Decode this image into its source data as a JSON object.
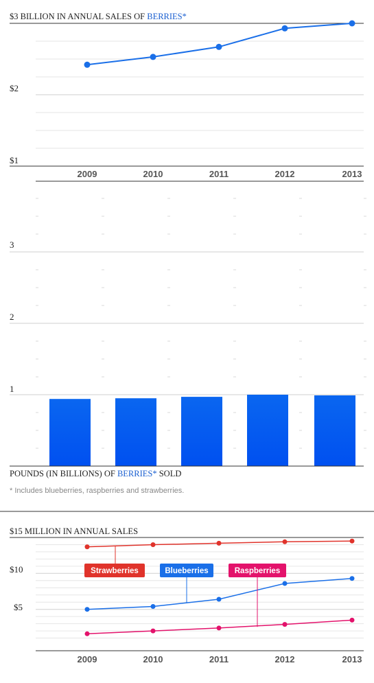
{
  "chart_data": [
    {
      "type": "line",
      "title_prefix": "$3 BILLION IN ANNUAL SALES OF ",
      "title_accent": "BERRIES*",
      "x": [
        "2009",
        "2010",
        "2011",
        "2012",
        "2013"
      ],
      "y_tick_labels": [
        "$1",
        "$2"
      ],
      "series": [
        {
          "values": [
            2.42,
            2.53,
            2.67,
            2.93,
            3.0
          ]
        }
      ],
      "ylim": [
        1,
        3
      ],
      "color": "#1a6fe8"
    },
    {
      "type": "bar",
      "title_prefix": "POUNDS (IN BILLIONS) OF ",
      "title_accent": "BERRIES*",
      "title_suffix": " SOLD",
      "categories": [
        "2009",
        "2010",
        "2011",
        "2012",
        "2013"
      ],
      "values": [
        0.94,
        0.95,
        0.97,
        1.0,
        0.99
      ],
      "y_tick_labels": [
        "1",
        "2",
        "3"
      ],
      "ylim": [
        0,
        4
      ],
      "color": "#0a5cf5"
    },
    {
      "type": "line",
      "title": "$15 MILLION IN ANNUAL SALES",
      "x": [
        "2009",
        "2010",
        "2011",
        "2012",
        "2013"
      ],
      "y_tick_labels": [
        "$5",
        "$10"
      ],
      "ylim": [
        0,
        15
      ],
      "series": [
        {
          "name": "Strawberries",
          "values": [
            13.7,
            14.0,
            14.2,
            14.4,
            14.5
          ],
          "color": "#e0332b"
        },
        {
          "name": "Blueberries",
          "values": [
            5.0,
            5.4,
            6.4,
            8.6,
            9.3
          ],
          "color": "#1a6fe8"
        },
        {
          "name": "Raspberries",
          "values": [
            1.6,
            2.0,
            2.4,
            2.9,
            3.5
          ],
          "color": "#e3126b"
        }
      ]
    }
  ],
  "footnote": "* Includes blueberries, raspberries and strawberries."
}
